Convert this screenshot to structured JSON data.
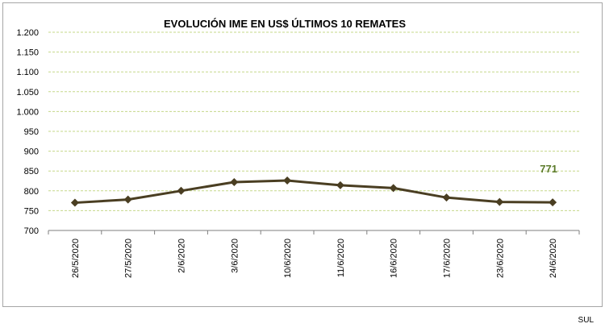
{
  "chart_data": {
    "type": "line",
    "title": "EVOLUCIÓN IME EN US$ ÚLTIMOS 10 REMATES",
    "xlabel": "",
    "ylabel": "",
    "categories": [
      "26/5/2020",
      "27/5/2020",
      "2/6/2020",
      "3/6/2020",
      "10/6/2020",
      "11/6/2020",
      "16/6/2020",
      "17/6/2020",
      "23/6/2020",
      "24/6/2020"
    ],
    "series": [
      {
        "values": [
          770,
          778,
          800,
          822,
          826,
          814,
          807,
          783,
          772,
          771
        ]
      }
    ],
    "ylim": [
      700,
      1200
    ],
    "yticks": [
      700,
      750,
      800,
      850,
      900,
      950,
      1000,
      1050,
      1100,
      1150,
      1200
    ],
    "ytick_labels": [
      "700",
      "750",
      "800",
      "850",
      "900",
      "950",
      "1.000",
      "1.050",
      "1.100",
      "1.150",
      "1.200"
    ],
    "grid": true,
    "data_label": {
      "text": "771"
    },
    "colors": {
      "line": "#4a3e22",
      "marker": "#4a3e22",
      "grid": "#c5d88a",
      "label": "#5b7a2a"
    }
  },
  "footer": {
    "text": "SUL"
  }
}
